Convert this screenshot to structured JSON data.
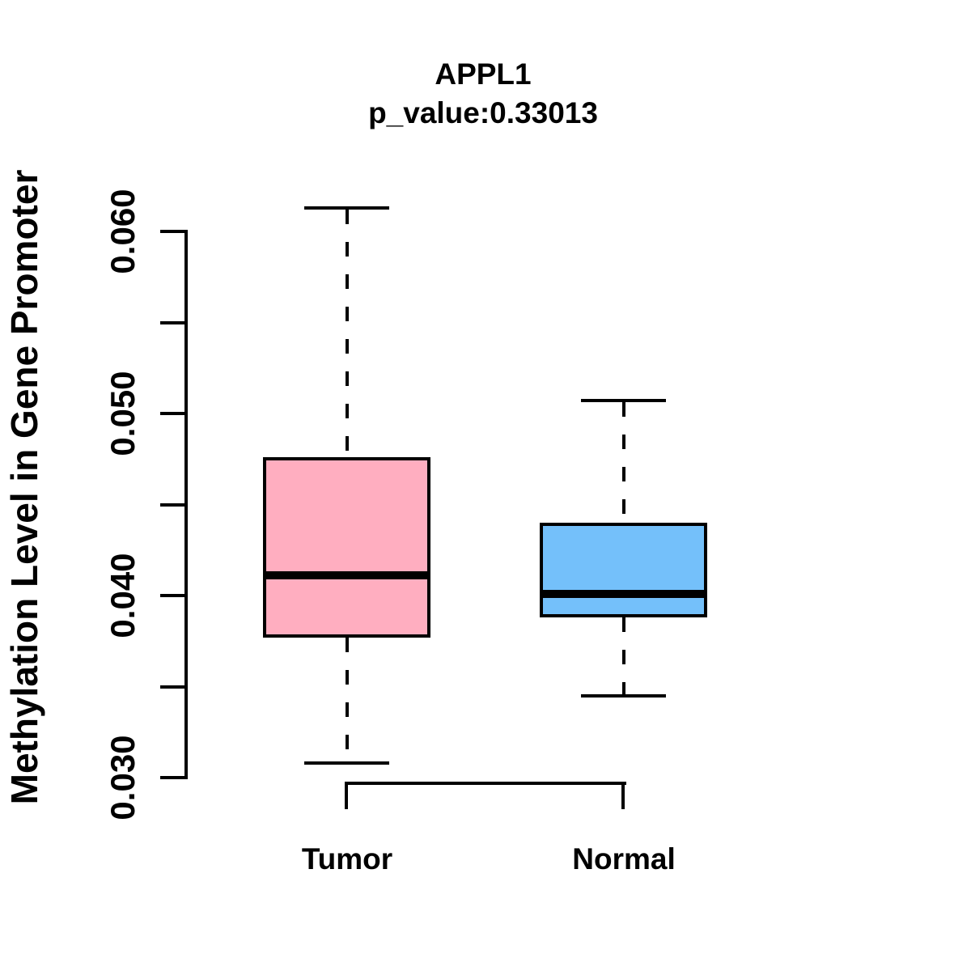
{
  "title": "APPL1",
  "subtitle": "p_value:0.33013",
  "ylabel": "Methylation Level in Gene Promoter",
  "colors": {
    "tumor_fill": "#FFAEC0",
    "normal_fill": "#74C0FA",
    "line": "#000000",
    "background": "#FFFFFF"
  },
  "chart_data": {
    "type": "boxplot",
    "title": "APPL1",
    "subtitle": "p_value:0.33013",
    "p_value": 0.33013,
    "ylabel": "Methylation Level in Gene Promoter",
    "xlabel": "",
    "categories": [
      "Tumor",
      "Normal"
    ],
    "series": [
      {
        "name": "Tumor",
        "color": "#FFAEC0",
        "min": 0.0308,
        "q1": 0.0378,
        "median": 0.0411,
        "q3": 0.0475,
        "max": 0.0613
      },
      {
        "name": "Normal",
        "color": "#74C0FA",
        "min": 0.0345,
        "q1": 0.0389,
        "median": 0.0401,
        "q3": 0.0439,
        "max": 0.0507
      }
    ],
    "ylim": [
      0.03,
      0.06
    ],
    "yticks": [
      {
        "value": 0.03,
        "label": "0.030"
      },
      {
        "value": 0.035,
        "label": ""
      },
      {
        "value": 0.04,
        "label": "0.040"
      },
      {
        "value": 0.045,
        "label": ""
      },
      {
        "value": 0.05,
        "label": "0.050"
      },
      {
        "value": 0.055,
        "label": ""
      },
      {
        "value": 0.06,
        "label": "0.060"
      }
    ],
    "grid": false,
    "legend": "none",
    "comparison_bracket": {
      "groups": [
        "Tumor",
        "Normal"
      ],
      "position": "below-boxes"
    }
  }
}
